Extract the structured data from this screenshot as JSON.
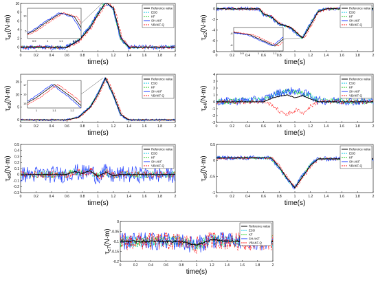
{
  "colors": {
    "Reference value": "#000000",
    "ESO": "#00c8e6",
    "KF": "#22cc22",
    "SH-AKF": "#1f3dff",
    "VBAKF-Q": "#ff1a1a"
  },
  "chart_data": [
    {
      "id": "e1",
      "type": "line",
      "ylabel_main": "τ",
      "ylabel_sub": "e1",
      "ylabel_unit": "(N·m)",
      "xlabel": "time(s)",
      "xlim": [
        0,
        2
      ],
      "ylim": [
        -1,
        10
      ],
      "xticks": [
        "0",
        "0.2",
        "0.4",
        "0.6",
        "0.8",
        "1",
        "1.2",
        "1.4",
        "1.6",
        "1.8",
        "2"
      ],
      "yticks": [
        "0",
        "2",
        "4",
        "6",
        "8",
        "10"
      ],
      "legend": [
        "Reference value",
        "ESO",
        "KF",
        "SH-AKF",
        "VBAKF-Q"
      ],
      "legend_position": "top-right",
      "noise": [
        0.3,
        0.3,
        0.3,
        0.55,
        0.35
      ],
      "series_points": [
        [
          0,
          0
        ],
        [
          0.6,
          0
        ],
        [
          0.75,
          1.5
        ],
        [
          0.9,
          4.5
        ],
        [
          1.0,
          7.5
        ],
        [
          1.1,
          10.2
        ],
        [
          1.2,
          9.0
        ],
        [
          1.3,
          2.0
        ],
        [
          1.4,
          0
        ],
        [
          2,
          0
        ]
      ],
      "inset": {
        "xticks": [
          "0.9",
          "1",
          "1.1",
          "1.2"
        ],
        "yticks": [
          "5",
          "10"
        ]
      }
    },
    {
      "id": "e2",
      "type": "line",
      "ylabel_main": "τ",
      "ylabel_sub": "e2",
      "ylabel_unit": "(N·m)",
      "xlabel": "time(s)",
      "xlim": [
        0,
        2
      ],
      "ylim": [
        -8,
        1
      ],
      "xticks": [
        "0",
        "0.2",
        "0.4",
        "0.6",
        "0.8",
        "1",
        "1.2",
        "1.4",
        "1.6",
        "1.8",
        "2"
      ],
      "yticks": [
        "0",
        "-2",
        "-4",
        "-6",
        "-8"
      ],
      "legend": [
        "Reference value",
        "ESO",
        "KF",
        "SH-AKF",
        "VBAKF-Q"
      ],
      "legend_position": "top-right",
      "noise": [
        0.2,
        0.2,
        0.2,
        0.35,
        0.25
      ],
      "series_points": [
        [
          0,
          0
        ],
        [
          0.55,
          0
        ],
        [
          0.6,
          -1
        ],
        [
          0.7,
          -1.5
        ],
        [
          0.8,
          -2.8
        ],
        [
          0.95,
          -3.5
        ],
        [
          1.1,
          -5.5
        ],
        [
          1.2,
          -3
        ],
        [
          1.3,
          -0.5
        ],
        [
          1.4,
          0
        ],
        [
          2,
          0
        ]
      ],
      "inset": {
        "xticks": [
          "0.9",
          "1",
          "1.1"
        ],
        "yticks": [
          "-6",
          "-8"
        ]
      }
    },
    {
      "id": "e3",
      "type": "line",
      "ylabel_main": "τ",
      "ylabel_sub": "e3",
      "ylabel_unit": "(N·m)",
      "xlabel": "time(s)",
      "xlim": [
        0,
        2
      ],
      "ylim": [
        -1,
        18
      ],
      "xticks": [
        "0",
        "0.2",
        "0.4",
        "0.6",
        "0.8",
        "1",
        "1.2",
        "1.4",
        "1.6",
        "1.8",
        "2"
      ],
      "yticks": [
        "0",
        "5",
        "10",
        "15"
      ],
      "legend": [
        "Reference value",
        "ESO",
        "KF",
        "SH-AKF",
        "VBAKF-Q"
      ],
      "legend_position": "top-right",
      "noise": [
        0.2,
        0.2,
        0.2,
        0.4,
        0.25
      ],
      "series_points": [
        [
          0,
          0
        ],
        [
          0.6,
          0
        ],
        [
          0.75,
          1
        ],
        [
          0.9,
          5
        ],
        [
          1.0,
          10
        ],
        [
          1.1,
          16.5
        ],
        [
          1.2,
          10
        ],
        [
          1.3,
          2
        ],
        [
          1.4,
          0
        ],
        [
          2,
          0
        ]
      ],
      "inset": {
        "xticks": [
          "1",
          "1.1",
          "1.2"
        ],
        "yticks": [
          "15",
          "16",
          "17"
        ]
      }
    },
    {
      "id": "e4",
      "type": "line",
      "ylabel_main": "τ",
      "ylabel_sub": "e4",
      "ylabel_unit": "(N·m)",
      "xlabel": "time(s)",
      "xlim": [
        0,
        2
      ],
      "ylim": [
        -3,
        4
      ],
      "xticks": [
        "0",
        "0.2",
        "0.4",
        "0.6",
        "0.8",
        "1",
        "1.2",
        "1.4",
        "1.6",
        "1.8",
        "2"
      ],
      "yticks": [
        "-3",
        "-2",
        "-1",
        "0",
        "1",
        "2",
        "3",
        "4"
      ],
      "legend": [
        "Reference value",
        "ESO",
        "KF",
        "SH-AKF",
        "VBAKF-Q"
      ],
      "legend_position": "top-right",
      "noise": [
        0.15,
        0.4,
        0.4,
        0.6,
        0.3
      ],
      "series_points": [
        [
          0,
          0
        ],
        [
          0.6,
          0
        ],
        [
          0.7,
          0.5
        ],
        [
          0.8,
          0.8
        ],
        [
          0.9,
          1.0
        ],
        [
          1.0,
          0.6
        ],
        [
          1.1,
          0.9
        ],
        [
          1.2,
          0.4
        ],
        [
          1.3,
          0
        ],
        [
          2,
          0
        ]
      ],
      "red_points": [
        [
          0,
          0
        ],
        [
          0.6,
          0
        ],
        [
          0.7,
          -0.5
        ],
        [
          0.8,
          -1.5
        ],
        [
          0.9,
          -1.8
        ],
        [
          1.0,
          -1.2
        ],
        [
          1.1,
          -1.6
        ],
        [
          1.2,
          -0.5
        ],
        [
          1.3,
          0
        ],
        [
          2,
          0
        ]
      ],
      "blue_points": [
        [
          0,
          0
        ],
        [
          0.6,
          0.3
        ],
        [
          0.8,
          1.3
        ],
        [
          1.0,
          1.6
        ],
        [
          1.2,
          1.0
        ],
        [
          1.3,
          0.2
        ],
        [
          2,
          0
        ]
      ]
    },
    {
      "id": "e5",
      "type": "line",
      "ylabel_main": "τ",
      "ylabel_sub": "e5",
      "ylabel_unit": "(N·m)",
      "xlabel": "time(s)",
      "xlim": [
        0,
        2
      ],
      "ylim": [
        -0.3,
        0.5
      ],
      "xticks": [
        "0",
        "0.2",
        "0.4",
        "0.6",
        "0.8",
        "1",
        "1.2",
        "1.4",
        "1.6",
        "1.8",
        "2"
      ],
      "yticks": [
        "-0.3",
        "-0.2",
        "-0.1",
        "0",
        "0.1",
        "0.2",
        "0.3",
        "0.4",
        "0.5"
      ],
      "legend": [
        "Reference value",
        "ESO",
        "KF",
        "SH-AKF",
        "VBAKF-Q"
      ],
      "legend_position": "top-right",
      "noise": [
        0.02,
        0.06,
        0.06,
        0.14,
        0.06
      ],
      "series_points": [
        [
          0,
          0
        ],
        [
          0.6,
          0
        ],
        [
          0.7,
          0.05
        ],
        [
          0.8,
          0.02
        ],
        [
          0.9,
          0.06
        ],
        [
          1.0,
          -0.03
        ],
        [
          1.1,
          0.04
        ],
        [
          1.2,
          -0.02
        ],
        [
          1.3,
          0
        ],
        [
          2,
          0
        ]
      ]
    },
    {
      "id": "e6",
      "type": "line",
      "ylabel_main": "τ",
      "ylabel_sub": "e6",
      "ylabel_unit": "(N·m)",
      "xlabel": "time(s)",
      "xlim": [
        0,
        2
      ],
      "ylim": [
        -1,
        0.5
      ],
      "xticks": [
        "0",
        "0.2",
        "0.4",
        "0.6",
        "0.8",
        "1",
        "1.2",
        "1.4",
        "1.6",
        "1.8",
        "2"
      ],
      "yticks": [
        "-1",
        "-0.5",
        "0",
        "0.5"
      ],
      "legend": [
        "Reference value",
        "ESO",
        "KF",
        "SH-AKF",
        "VBAKF-Q"
      ],
      "legend_position": "top-right",
      "noise": [
        0.02,
        0.04,
        0.04,
        0.07,
        0.04
      ],
      "series_points": [
        [
          0,
          0.08
        ],
        [
          0.7,
          0.08
        ],
        [
          0.8,
          -0.2
        ],
        [
          0.9,
          -0.55
        ],
        [
          1.0,
          -0.85
        ],
        [
          1.1,
          -0.5
        ],
        [
          1.2,
          -0.15
        ],
        [
          1.3,
          0.05
        ],
        [
          2,
          0.05
        ]
      ]
    },
    {
      "id": "e7",
      "type": "line",
      "ylabel_main": "τ",
      "ylabel_sub": "e7",
      "ylabel_unit": "(N·m)",
      "xlabel": "time(s)",
      "xlim": [
        0,
        2
      ],
      "ylim": [
        -0.2,
        0
      ],
      "xticks": [
        "0",
        "0.2",
        "0.4",
        "0.6",
        "0.8",
        "1",
        "1.2",
        "1.4",
        "1.6",
        "1.8",
        "2"
      ],
      "yticks": [
        "0",
        "-0.05",
        "-0.1",
        "-0.15",
        "-0.2"
      ],
      "legend": [
        "Reference value",
        "ESO",
        "KF",
        "SH-AKF",
        "VBAKF-Q"
      ],
      "legend_position": "top-right",
      "noise": [
        0.015,
        0.03,
        0.03,
        0.045,
        0.045
      ],
      "series_points": [
        [
          0,
          -0.1
        ],
        [
          0.8,
          -0.1
        ],
        [
          1.0,
          -0.12
        ],
        [
          1.2,
          -0.09
        ],
        [
          1.4,
          -0.1
        ],
        [
          2,
          -0.1
        ]
      ]
    }
  ]
}
